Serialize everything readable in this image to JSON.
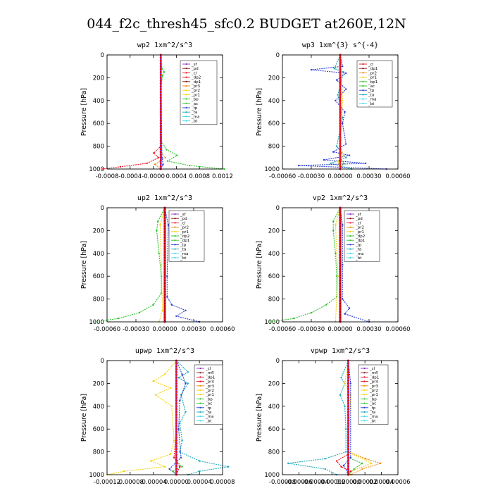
{
  "title": "044_f2c_thresh45_sfc0.2  BUDGET at260E,12N",
  "colors": {
    "purple": "#8b2fc9",
    "darkred": "#8b0a1a",
    "red": "#e8101e",
    "orange": "#f08a10",
    "yellow": "#f2d21b",
    "green": "#2ec42e",
    "blue": "#2a3ed6",
    "teal": "#1aa8b8",
    "cyan": "#40d8f0",
    "black": "#000000"
  },
  "chart_data": [
    {
      "type": "line",
      "title": "wp2   1xm^2/s^3",
      "ylabel": "Pressure [hPa]",
      "ylim": [
        1000,
        0
      ],
      "yticks": [
        "0",
        "200",
        "400",
        "600",
        "800",
        "1000"
      ],
      "xlim": [
        -0.0009,
        0.0012
      ],
      "xticks": [
        "-0.0008",
        "-0.0004",
        "-0.0000",
        "0.0004",
        "0.0008",
        "0.0012"
      ],
      "legend": [
        "_sf",
        "_pd",
        "_cl",
        "_dp2",
        "_dp1",
        "_pr3",
        "_pr2",
        "_pr1",
        "_bp",
        "_ac",
        "_tp",
        "_ta",
        "_ma",
        "_bt"
      ],
      "series_colors": [
        "purple",
        "darkred",
        "red",
        "red",
        "darkred",
        "orange",
        "yellow",
        "yellow",
        "green",
        "green",
        "blue",
        "teal",
        "cyan",
        "cyan"
      ]
    },
    {
      "type": "line",
      "title": "wp3   1xm^{3} s^{-4}",
      "ylabel": "Pressure [hPa]",
      "ylim": [
        1000,
        0
      ],
      "yticks": [
        "0",
        "200",
        "400",
        "600",
        "800",
        "1000"
      ],
      "xlim": [
        -0.0006,
        0.0006
      ],
      "xticks": [
        "-0.00060",
        "-0.00030",
        "0.00000",
        "0.00030",
        "0.00060"
      ],
      "legend": [
        "_cl",
        "_dp1",
        "_pr2",
        "_pr1",
        "_bp1",
        "_ac",
        "_tp",
        "_ta",
        "_ma",
        "_bt"
      ],
      "series_colors": [
        "red",
        "darkred",
        "orange",
        "yellow",
        "green",
        "green",
        "blue",
        "teal",
        "cyan",
        "cyan"
      ]
    },
    {
      "type": "line",
      "title": "up2   1xm^2/s^3",
      "ylabel": "Pressure [hPa]",
      "ylim": [
        1000,
        0
      ],
      "yticks": [
        "0",
        "200",
        "400",
        "600",
        "800",
        "1000"
      ],
      "xlim": [
        -0.0006,
        0.0006
      ],
      "xticks": [
        "-0.00060",
        "-0.00030",
        "0.00000",
        "0.00030",
        "0.00060"
      ],
      "legend": [
        "_sf",
        "_pd",
        "_cl",
        "_pr2",
        "_pr1",
        "_dp2",
        "_dp1",
        "_tp",
        "_ta",
        "_ma",
        "_bt"
      ],
      "series_colors": [
        "purple",
        "darkred",
        "red",
        "orange",
        "yellow",
        "green",
        "green",
        "blue",
        "teal",
        "cyan",
        "cyan"
      ]
    },
    {
      "type": "line",
      "title": "vp2   1xm^2/s^3",
      "ylabel": "Pressure [hPa]",
      "ylim": [
        1000,
        0
      ],
      "yticks": [
        "0",
        "200",
        "400",
        "600",
        "800",
        "1000"
      ],
      "xlim": [
        -0.0006,
        0.0006
      ],
      "xticks": [
        "-0.00060",
        "-0.00030",
        "0.00000",
        "0.00030",
        "0.00060"
      ],
      "legend": [
        "_sf",
        "_pd",
        "_cl",
        "_pr2",
        "_pr1",
        "_dp2",
        "_dp1",
        "_tp",
        "_ta",
        "_ma",
        "_bt"
      ],
      "series_colors": [
        "purple",
        "darkred",
        "red",
        "orange",
        "yellow",
        "green",
        "green",
        "blue",
        "teal",
        "cyan",
        "cyan"
      ]
    },
    {
      "type": "line",
      "title": "upwp   1xm^2/s^3",
      "ylabel": "Pressure [hPa]",
      "ylim": [
        1000,
        0
      ],
      "yticks": [
        "0",
        "200",
        "400",
        "600",
        "800",
        "1000"
      ],
      "xlim": [
        -0.00012,
        8e-05
      ],
      "xticks": [
        "-0.00012",
        "-0.00008",
        "-0.00004",
        "0.00000",
        "0.00004",
        "0.00008"
      ],
      "legend": [
        "_cl",
        "_mfl",
        "_dp1",
        "_pr4",
        "_pr3",
        "_pr2",
        "_pr1",
        "_bp",
        "_ac",
        "_tp",
        "_ta",
        "_ma",
        "_bt"
      ],
      "series_colors": [
        "purple",
        "darkred",
        "red",
        "red",
        "orange",
        "yellow",
        "yellow",
        "green",
        "green",
        "blue",
        "teal",
        "cyan",
        "cyan"
      ]
    },
    {
      "type": "line",
      "title": "vpwp   1xm^2/s^3",
      "ylabel": "Pressure [hPa]",
      "ylim": [
        1000,
        0
      ],
      "yticks": [
        "0",
        "200",
        "400",
        "600",
        "800",
        "1000"
      ],
      "xlim": [
        -8e-05,
        6e-05
      ],
      "xticks": [
        "-0.00008",
        "-0.00006",
        "-0.00004",
        "-0.00002",
        "0.00000",
        "0.00002",
        "0.00004",
        "0.00006"
      ],
      "legend": [
        "_cl",
        "_mfl",
        "_dp1",
        "_pr4",
        "_pr3",
        "_pr2",
        "_pr1",
        "_bp",
        "_ac",
        "_tp",
        "_ta",
        "_ma",
        "_bt"
      ],
      "series_colors": [
        "purple",
        "darkred",
        "red",
        "red",
        "orange",
        "yellow",
        "yellow",
        "green",
        "green",
        "blue",
        "teal",
        "cyan",
        "cyan"
      ]
    }
  ]
}
